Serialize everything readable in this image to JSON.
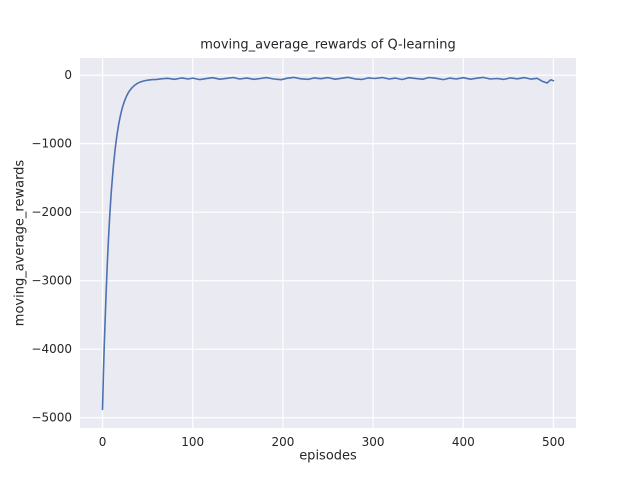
{
  "chart_data": {
    "type": "line",
    "title": "moving_average_rewards of Q-learning",
    "xlabel": "episodes",
    "ylabel": "moving_average_rewards",
    "xlim": [
      -25,
      525
    ],
    "ylim": [
      -5150,
      250
    ],
    "xticks": [
      0,
      100,
      200,
      300,
      400,
      500
    ],
    "xtick_labels": [
      "0",
      "100",
      "200",
      "300",
      "400",
      "500"
    ],
    "yticks": [
      0,
      -1000,
      -2000,
      -3000,
      -4000,
      -5000
    ],
    "ytick_labels": [
      "0",
      "−1000",
      "−2000",
      "−3000",
      "−4000",
      "−5000"
    ],
    "grid": true,
    "legend": "none",
    "plot_background": "#eaeaf2",
    "grid_color": "#ffffff",
    "line_color": "#4c72b0",
    "x": [
      0,
      1,
      2,
      3,
      4,
      5,
      6,
      7,
      8,
      9,
      10,
      12,
      14,
      16,
      18,
      20,
      22,
      24,
      26,
      28,
      30,
      33,
      36,
      39,
      42,
      45,
      48,
      52,
      56,
      60,
      65,
      72,
      80,
      88,
      95,
      100,
      108,
      115,
      122,
      130,
      138,
      145,
      152,
      160,
      168,
      175,
      182,
      190,
      198,
      205,
      212,
      220,
      228,
      235,
      242,
      250,
      258,
      265,
      272,
      280,
      288,
      295,
      302,
      310,
      318,
      325,
      332,
      340,
      348,
      355,
      362,
      370,
      378,
      385,
      392,
      400,
      408,
      415,
      422,
      430,
      438,
      445,
      452,
      460,
      468,
      475,
      482,
      488,
      493,
      497,
      500
    ],
    "y": [
      -4880,
      -4373,
      -3918,
      -3512,
      -3149,
      -2824,
      -2532,
      -2272,
      -2039,
      -1830,
      -1643,
      -1327,
      -1074,
      -870,
      -708,
      -578,
      -474,
      -390,
      -323,
      -270,
      -227,
      -179,
      -143,
      -118,
      -100,
      -87,
      -78,
      -70,
      -65,
      -62,
      -54,
      -47,
      -61,
      -40,
      -57,
      -44,
      -65,
      -51,
      -38,
      -59,
      -46,
      -34,
      -57,
      -43,
      -61,
      -49,
      -36,
      -56,
      -67,
      -45,
      -33,
      -54,
      -61,
      -40,
      -52,
      -36,
      -59,
      -47,
      -32,
      -55,
      -63,
      -41,
      -49,
      -35,
      -57,
      -44,
      -64,
      -37,
      -51,
      -59,
      -34,
      -47,
      -65,
      -43,
      -56,
      -38,
      -60,
      -45,
      -33,
      -57,
      -49,
      -62,
      -40,
      -54,
      -36,
      -58,
      -46,
      -92,
      -115,
      -68,
      -82
    ]
  }
}
